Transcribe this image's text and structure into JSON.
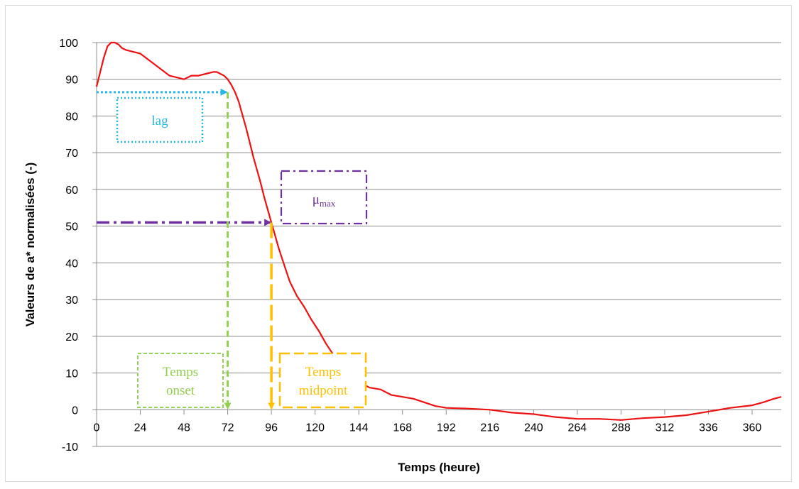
{
  "chart_data": {
    "type": "line",
    "title": "",
    "xlabel": "Temps (heure)",
    "ylabel": "Valeurs de a* normalisées (-)",
    "xlim": [
      0,
      376
    ],
    "ylim": [
      -10,
      105
    ],
    "grid": true,
    "x_ticks": [
      0,
      24,
      48,
      72,
      96,
      120,
      144,
      168,
      192,
      216,
      240,
      264,
      288,
      312,
      336,
      360
    ],
    "y_ticks": [
      -10,
      0,
      10,
      20,
      30,
      40,
      50,
      60,
      70,
      80,
      90,
      100
    ],
    "series": [
      {
        "color": "#ee1111",
        "points": [
          [
            0,
            88
          ],
          [
            2,
            92
          ],
          [
            4,
            96
          ],
          [
            6,
            99
          ],
          [
            8,
            100
          ],
          [
            10,
            100
          ],
          [
            12,
            99.5
          ],
          [
            14,
            98.5
          ],
          [
            16,
            98
          ],
          [
            20,
            97.5
          ],
          [
            24,
            97
          ],
          [
            28,
            95.5
          ],
          [
            32,
            94
          ],
          [
            36,
            92.5
          ],
          [
            40,
            91
          ],
          [
            44,
            90.5
          ],
          [
            48,
            90
          ],
          [
            52,
            91
          ],
          [
            56,
            91
          ],
          [
            60,
            91.5
          ],
          [
            64,
            92
          ],
          [
            66,
            92
          ],
          [
            68,
            91.5
          ],
          [
            70,
            91
          ],
          [
            72,
            90
          ],
          [
            74,
            88.5
          ],
          [
            76,
            86.5
          ],
          [
            78,
            84
          ],
          [
            80,
            80.5
          ],
          [
            82,
            77
          ],
          [
            84,
            73
          ],
          [
            86,
            69
          ],
          [
            88,
            65.5
          ],
          [
            90,
            62
          ],
          [
            92,
            58
          ],
          [
            94,
            54.5
          ],
          [
            96,
            51
          ],
          [
            98,
            47.5
          ],
          [
            100,
            44
          ],
          [
            102,
            41
          ],
          [
            104,
            38
          ],
          [
            106,
            35
          ],
          [
            108,
            33
          ],
          [
            110,
            31
          ],
          [
            114,
            28
          ],
          [
            118,
            24.5
          ],
          [
            122,
            21.5
          ],
          [
            126,
            18
          ],
          [
            130,
            15
          ],
          [
            134,
            12
          ],
          [
            138,
            9.5
          ],
          [
            142,
            8
          ],
          [
            146,
            7
          ],
          [
            150,
            6
          ],
          [
            156,
            5.5
          ],
          [
            162,
            4
          ],
          [
            168,
            3.5
          ],
          [
            174,
            3
          ],
          [
            180,
            2
          ],
          [
            186,
            1
          ],
          [
            192,
            0.5
          ],
          [
            204,
            0.3
          ],
          [
            216,
            0
          ],
          [
            228,
            -0.8
          ],
          [
            240,
            -1.2
          ],
          [
            252,
            -2
          ],
          [
            264,
            -2.5
          ],
          [
            276,
            -2.5
          ],
          [
            288,
            -2.8
          ],
          [
            300,
            -2.3
          ],
          [
            312,
            -2
          ],
          [
            324,
            -1.5
          ],
          [
            336,
            -0.5
          ],
          [
            348,
            0.5
          ],
          [
            360,
            1.2
          ],
          [
            366,
            2
          ],
          [
            372,
            3
          ],
          [
            376,
            3.5
          ]
        ]
      }
    ],
    "annotations": [
      {
        "label": "lag",
        "color": "#29b6e8",
        "arrow_y": 86.5,
        "arrow_x": [
          0,
          72
        ]
      },
      {
        "label": "μ",
        "sub": "max",
        "color": "#7030a0",
        "arrow_y": 51,
        "arrow_x": [
          0,
          96
        ]
      },
      {
        "label_lines": [
          "Temps",
          "onset"
        ],
        "color": "#92d050",
        "arrow_x": 72,
        "arrow_y": [
          86.5,
          0
        ]
      },
      {
        "label_lines": [
          "Temps",
          "midpoint"
        ],
        "color": "#ffc000",
        "arrow_x": 96,
        "arrow_y": [
          51,
          0
        ]
      }
    ]
  }
}
